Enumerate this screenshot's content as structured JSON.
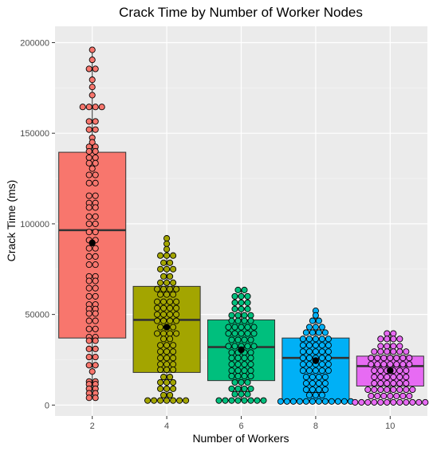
{
  "chart_data": {
    "type": "box",
    "title": "Crack Time by Number of Worker Nodes",
    "xlabel": "Number of Workers",
    "ylabel": "Crack Time (ms)",
    "categories": [
      "2",
      "4",
      "6",
      "8",
      "10"
    ],
    "ylim": [
      -6000,
      209000
    ],
    "yticks": [
      0,
      50000,
      100000,
      150000,
      200000
    ],
    "ytick_labels": [
      "0",
      "50000",
      "100000",
      "150000",
      "200000"
    ],
    "grid": true,
    "legend": "none",
    "series": [
      {
        "category": "2",
        "color": "#F8766D",
        "q1": 37000,
        "median": 96500,
        "q3": 139500,
        "whisker_low": 4000,
        "whisker_high": 196000,
        "mean": 89500,
        "points": [
          4000,
          4000,
          6500,
          6500,
          9000,
          9000,
          11500,
          11500,
          13000,
          13000,
          18500,
          22000,
          22000,
          26500,
          26500,
          31000,
          31000,
          35500,
          35500,
          37500,
          37500,
          42000,
          42000,
          46500,
          46500,
          50500,
          50500,
          53000,
          53000,
          55500,
          55500,
          60000,
          60000,
          64500,
          64500,
          68500,
          68500,
          71000,
          71000,
          77500,
          77500,
          82000,
          82000,
          86500,
          86500,
          91000,
          91000,
          95500,
          95500,
          100000,
          100000,
          104000,
          104000,
          109000,
          109000,
          111500,
          111500,
          115500,
          115500,
          122500,
          122500,
          127000,
          127000,
          130500,
          133500,
          133500,
          136500,
          136500,
          140000,
          140000,
          142500,
          142500,
          145000,
          147500,
          152000,
          152000,
          156500,
          156500,
          164500,
          164500,
          164500,
          164500,
          171000,
          175500,
          179500,
          185500,
          185500,
          190500,
          196000
        ]
      },
      {
        "category": "4",
        "color": "#A3A500",
        "q1": 18000,
        "median": 47000,
        "q3": 65500,
        "whisker_low": 2500,
        "whisker_high": 92000,
        "mean": 43000,
        "points": [
          2500,
          2500,
          2500,
          2500,
          2500,
          2500,
          2500,
          5500,
          5500,
          9000,
          9000,
          9000,
          12500,
          12500,
          12500,
          15500,
          15500,
          19500,
          19500,
          19500,
          22500,
          22500,
          22500,
          26000,
          26000,
          26000,
          29500,
          29500,
          29500,
          33000,
          33000,
          33000,
          36500,
          36500,
          39500,
          39500,
          39500,
          39500,
          43000,
          43000,
          43000,
          46500,
          46500,
          46500,
          46500,
          50000,
          50000,
          50000,
          50000,
          53500,
          53500,
          53500,
          53500,
          57000,
          57000,
          57000,
          57000,
          61000,
          61000,
          61000,
          64000,
          64000,
          64000,
          64000,
          67500,
          67500,
          67500,
          71000,
          71000,
          75000,
          75000,
          75000,
          78500,
          78500,
          82500,
          82500,
          82500,
          86000,
          89000,
          92000
        ]
      },
      {
        "category": "6",
        "color": "#00BF7D",
        "q1": 13500,
        "median": 32000,
        "q3": 47000,
        "whisker_low": 2500,
        "whisker_high": 63500,
        "mean": 30500,
        "points": [
          2500,
          2500,
          2500,
          2500,
          2500,
          2500,
          2500,
          2500,
          6000,
          6000,
          6000,
          9000,
          9000,
          9000,
          9000,
          12500,
          12500,
          12500,
          16000,
          16000,
          16000,
          16000,
          19000,
          19000,
          19000,
          19000,
          22500,
          22500,
          22500,
          22500,
          26000,
          26000,
          26000,
          26000,
          29000,
          29000,
          29000,
          29000,
          32500,
          32500,
          32500,
          32500,
          32500,
          36000,
          36000,
          36000,
          36000,
          39500,
          39500,
          39500,
          39500,
          39500,
          43000,
          43000,
          43000,
          43000,
          43000,
          46500,
          46500,
          46500,
          46500,
          49500,
          49500,
          49500,
          49500,
          53000,
          53000,
          53000,
          56500,
          56500,
          56500,
          60000,
          60000,
          60000,
          63500,
          63500
        ]
      },
      {
        "category": "8",
        "color": "#00B0F6",
        "q1": 2500,
        "median": 26000,
        "q3": 37000,
        "whisker_low": 2000,
        "whisker_high": 52000,
        "mean": 24500,
        "points": [
          2000,
          2000,
          2000,
          2000,
          2000,
          2000,
          2000,
          2000,
          2000,
          2000,
          2000,
          2000,
          5500,
          5500,
          5500,
          8500,
          8500,
          8500,
          8500,
          12000,
          12000,
          12000,
          12000,
          15500,
          15500,
          15500,
          15500,
          19000,
          19000,
          19000,
          19000,
          19000,
          22500,
          22500,
          22500,
          22500,
          22500,
          26000,
          26000,
          26000,
          26000,
          26000,
          29500,
          29500,
          29500,
          29500,
          29500,
          33000,
          33000,
          33000,
          33000,
          33000,
          36500,
          36500,
          36500,
          36500,
          36500,
          40000,
          40000,
          40000,
          40000,
          43000,
          43000,
          43000,
          46500,
          46500,
          49500,
          52000
        ]
      },
      {
        "category": "10",
        "color": "#E76BF3",
        "q1": 10500,
        "median": 21500,
        "q3": 27000,
        "whisker_low": 1500,
        "whisker_high": 39500,
        "mean": 19000,
        "points": [
          1500,
          1500,
          1500,
          1500,
          1500,
          1500,
          1500,
          1500,
          1500,
          1500,
          1500,
          1500,
          5000,
          5000,
          5000,
          5000,
          5000,
          5000,
          5000,
          8500,
          8500,
          8500,
          8500,
          8500,
          8500,
          8500,
          8500,
          12000,
          12000,
          12000,
          12000,
          12000,
          12000,
          15500,
          15500,
          15500,
          15500,
          15500,
          15500,
          19000,
          19000,
          19000,
          19000,
          19000,
          19000,
          22500,
          22500,
          22500,
          22500,
          22500,
          22500,
          22500,
          26000,
          26000,
          26000,
          26000,
          26000,
          26000,
          26000,
          29500,
          29500,
          29500,
          29500,
          29500,
          29500,
          32500,
          32500,
          32500,
          32500,
          36500,
          36500,
          36500,
          36500,
          39500,
          39500
        ]
      }
    ]
  }
}
